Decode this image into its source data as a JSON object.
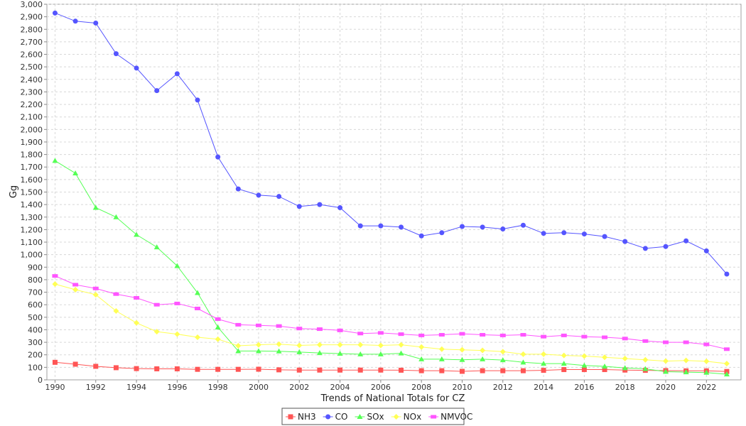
{
  "chart_data": {
    "type": "line",
    "title": "",
    "xlabel": "Trends of National Totals for CZ",
    "ylabel": "Gg",
    "xlim": [
      1989.6,
      2023.7
    ],
    "ylim": [
      0,
      3000
    ],
    "yticks": [
      0,
      100,
      200,
      300,
      400,
      500,
      600,
      700,
      800,
      900,
      1000,
      1100,
      1200,
      1300,
      1400,
      1500,
      1600,
      1700,
      1800,
      1900,
      2000,
      2100,
      2200,
      2300,
      2400,
      2500,
      2600,
      2700,
      2800,
      2900,
      3000
    ],
    "xticks": [
      1990,
      1992,
      1994,
      1996,
      1998,
      2000,
      2002,
      2004,
      2006,
      2008,
      2010,
      2012,
      2014,
      2016,
      2018,
      2020,
      2022
    ],
    "grid": true,
    "legend_position": "bottom-center",
    "x": [
      1990,
      1991,
      1992,
      1993,
      1994,
      1995,
      1996,
      1997,
      1998,
      1999,
      2000,
      2001,
      2002,
      2003,
      2004,
      2005,
      2006,
      2007,
      2008,
      2009,
      2010,
      2011,
      2012,
      2013,
      2014,
      2015,
      2016,
      2017,
      2018,
      2019,
      2020,
      2021,
      2022,
      2023
    ],
    "series": [
      {
        "name": "NH3",
        "color": "#ff5555",
        "marker": "square",
        "values": [
          140,
          125,
          108,
          97,
          90,
          88,
          88,
          84,
          84,
          84,
          85,
          80,
          78,
          78,
          78,
          78,
          78,
          77,
          73,
          73,
          68,
          73,
          73,
          73,
          76,
          82,
          82,
          82,
          78,
          76,
          74,
          72,
          72,
          67
        ]
      },
      {
        "name": "CO",
        "color": "#5555ff",
        "marker": "circle",
        "values": [
          2930,
          2865,
          2850,
          2605,
          2490,
          2310,
          2445,
          2235,
          1780,
          1525,
          1475,
          1465,
          1385,
          1400,
          1375,
          1230,
          1230,
          1220,
          1150,
          1175,
          1225,
          1220,
          1205,
          1235,
          1170,
          1175,
          1165,
          1145,
          1105,
          1050,
          1065,
          1110,
          1030,
          845
        ]
      },
      {
        "name": "SOx",
        "color": "#55ff55",
        "marker": "triangle",
        "values": [
          1750,
          1650,
          1375,
          1300,
          1160,
          1060,
          910,
          695,
          420,
          230,
          230,
          228,
          222,
          215,
          210,
          205,
          205,
          212,
          165,
          165,
          160,
          165,
          158,
          140,
          130,
          130,
          115,
          108,
          95,
          88,
          65,
          62,
          58,
          45
        ]
      },
      {
        "name": "NOx",
        "color": "#ffff55",
        "marker": "diamond",
        "values": [
          765,
          720,
          680,
          550,
          455,
          385,
          365,
          340,
          325,
          272,
          280,
          285,
          275,
          280,
          280,
          280,
          275,
          280,
          262,
          245,
          240,
          235,
          225,
          205,
          205,
          195,
          190,
          180,
          170,
          160,
          150,
          155,
          148,
          130
        ]
      },
      {
        "name": "NMVOC",
        "color": "#ff55ff",
        "marker": "rect",
        "values": [
          830,
          760,
          730,
          685,
          655,
          600,
          610,
          570,
          485,
          440,
          435,
          430,
          410,
          405,
          395,
          370,
          375,
          365,
          355,
          360,
          368,
          360,
          355,
          360,
          345,
          355,
          345,
          340,
          330,
          310,
          300,
          300,
          283,
          245
        ]
      }
    ]
  }
}
